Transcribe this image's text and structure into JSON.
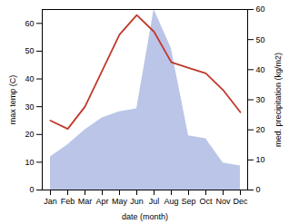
{
  "chart_data": {
    "type": "line",
    "categories": [
      "Jan",
      "Feb",
      "Mar",
      "Apr",
      "May",
      "Jun",
      "Jul",
      "Aug",
      "Sep",
      "Oct",
      "Nov",
      "Dec"
    ],
    "series": [
      {
        "type": "area",
        "axis": "y2",
        "color": "#bbc5e8",
        "values": [
          11,
          15,
          20,
          24,
          26,
          27,
          60,
          47,
          18,
          17,
          9,
          8
        ]
      },
      {
        "type": "line",
        "color": "#c0392b",
        "values": [
          25,
          22,
          30,
          43,
          56,
          63,
          57,
          46,
          44,
          42,
          36,
          28
        ]
      }
    ],
    "xlabel": "date (month)",
    "ylabel": "max temp (C)",
    "y2label": "med. precipitation (kg/m2)",
    "ylim": [
      0,
      65
    ],
    "yticks": [
      0,
      10,
      20,
      30,
      40,
      50,
      60
    ],
    "y2lim": [
      0,
      60
    ],
    "y2ticks": [
      0,
      10,
      20,
      30,
      40,
      50,
      60
    ]
  }
}
